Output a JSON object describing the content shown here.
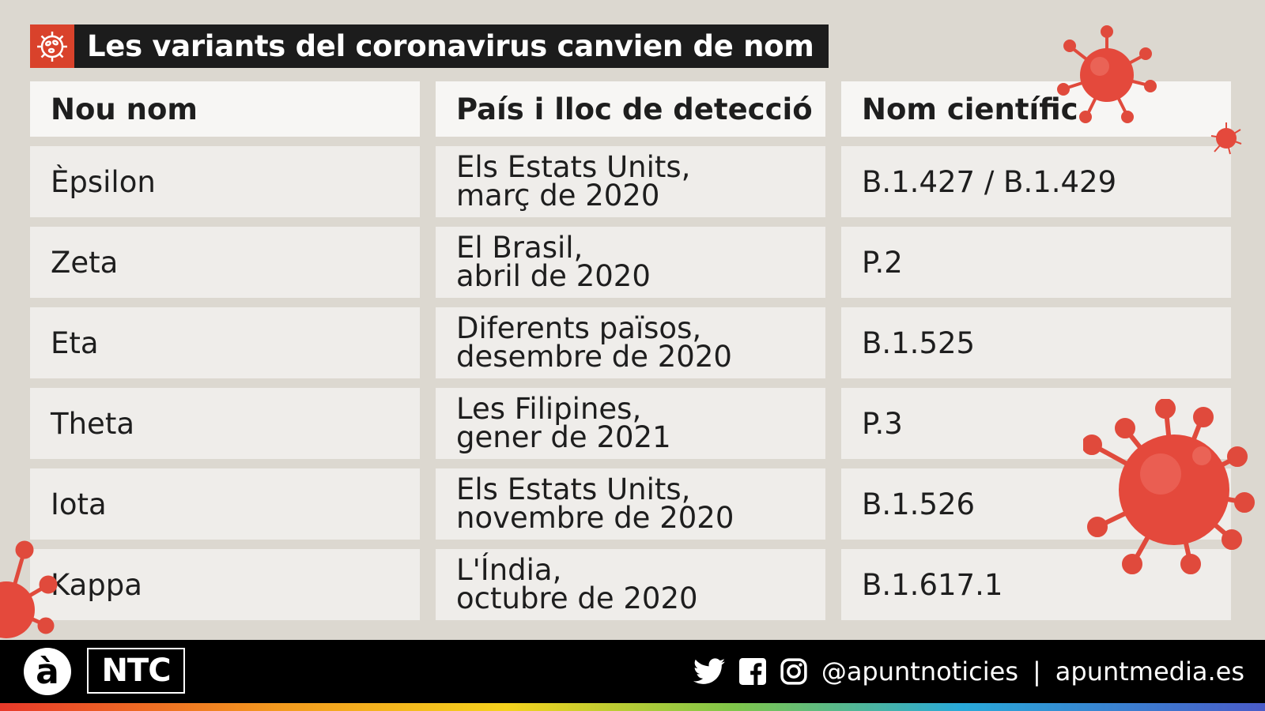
{
  "title": "Les variants del coronavirus canvien de nom",
  "table": {
    "headers": [
      "Nou nom",
      "País i lloc de detecció",
      "Nom científic"
    ],
    "rows": [
      {
        "name": "Èpsilon",
        "place": "Els Estats Units,\nmarç de 2020",
        "scientific": "B.1.427 / B.1.429"
      },
      {
        "name": "Zeta",
        "place": "El Brasil,\nabril de 2020",
        "scientific": "P.2"
      },
      {
        "name": "Eta",
        "place": "Diferents països,\ndesembre de 2020",
        "scientific": "B.1.525"
      },
      {
        "name": "Theta",
        "place": "Les Filipines,\ngener de 2021",
        "scientific": "P.3"
      },
      {
        "name": "Iota",
        "place": "Els Estats Units,\nnovembre de 2020",
        "scientific": "B.1.526"
      },
      {
        "name": "Kappa",
        "place": "L'Índia,\noctubre de 2020",
        "scientific": "B.1.617.1"
      }
    ]
  },
  "footer": {
    "logo_a": "à",
    "logo_ntc": "NTC",
    "handle": "@apuntnoticies",
    "separator": "|",
    "site": "apuntmedia.es",
    "icons": [
      "twitter-icon",
      "facebook-icon",
      "instagram-icon"
    ]
  },
  "colors": {
    "background": "#dcd8d0",
    "title_bg": "#1c1c1c",
    "accent": "#d9422b",
    "virus": "#e04a3c",
    "footer_bg": "#000000"
  }
}
